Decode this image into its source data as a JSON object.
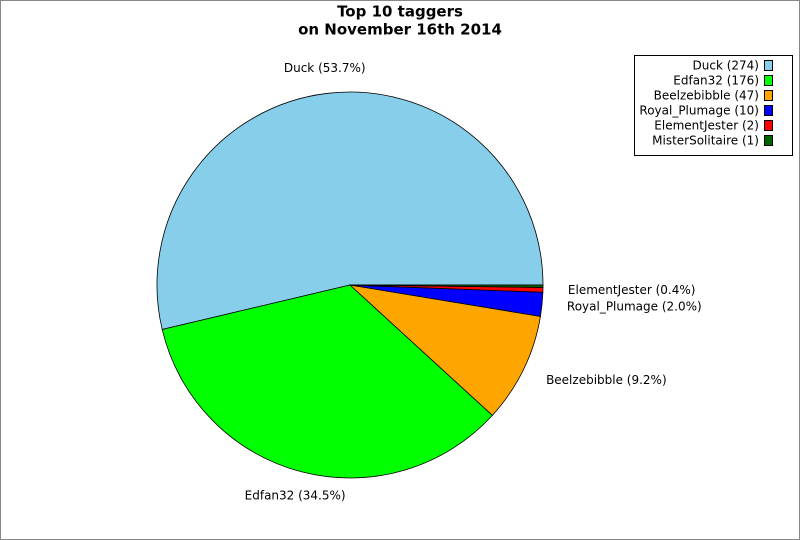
{
  "chart_data": {
    "type": "pie",
    "title": "Top 10 taggers",
    "subtitle": "on November 16th 2014",
    "categories": [
      "Duck (274)",
      "Edfan32 (176)",
      "Beelzebibble (47)",
      "Royal_Plumage (10)",
      "ElementJester (2)",
      "MisterSolitaire (1)"
    ],
    "values": [
      53.7,
      34.5,
      9.2,
      2.0,
      0.4,
      0.2
    ],
    "value_labels": [
      "Duck (53.7%)",
      "Edfan32 (34.5%)",
      "Beelzebibble (9.2%)",
      "Royal_Plumage (2.0%)",
      "ElementJester (0.4%)",
      null
    ],
    "colors": [
      "#87ceeb",
      "#00ff00",
      "#ffa500",
      "#0000ff",
      "#ff0000",
      "#006400"
    ],
    "legend": "top-right"
  }
}
